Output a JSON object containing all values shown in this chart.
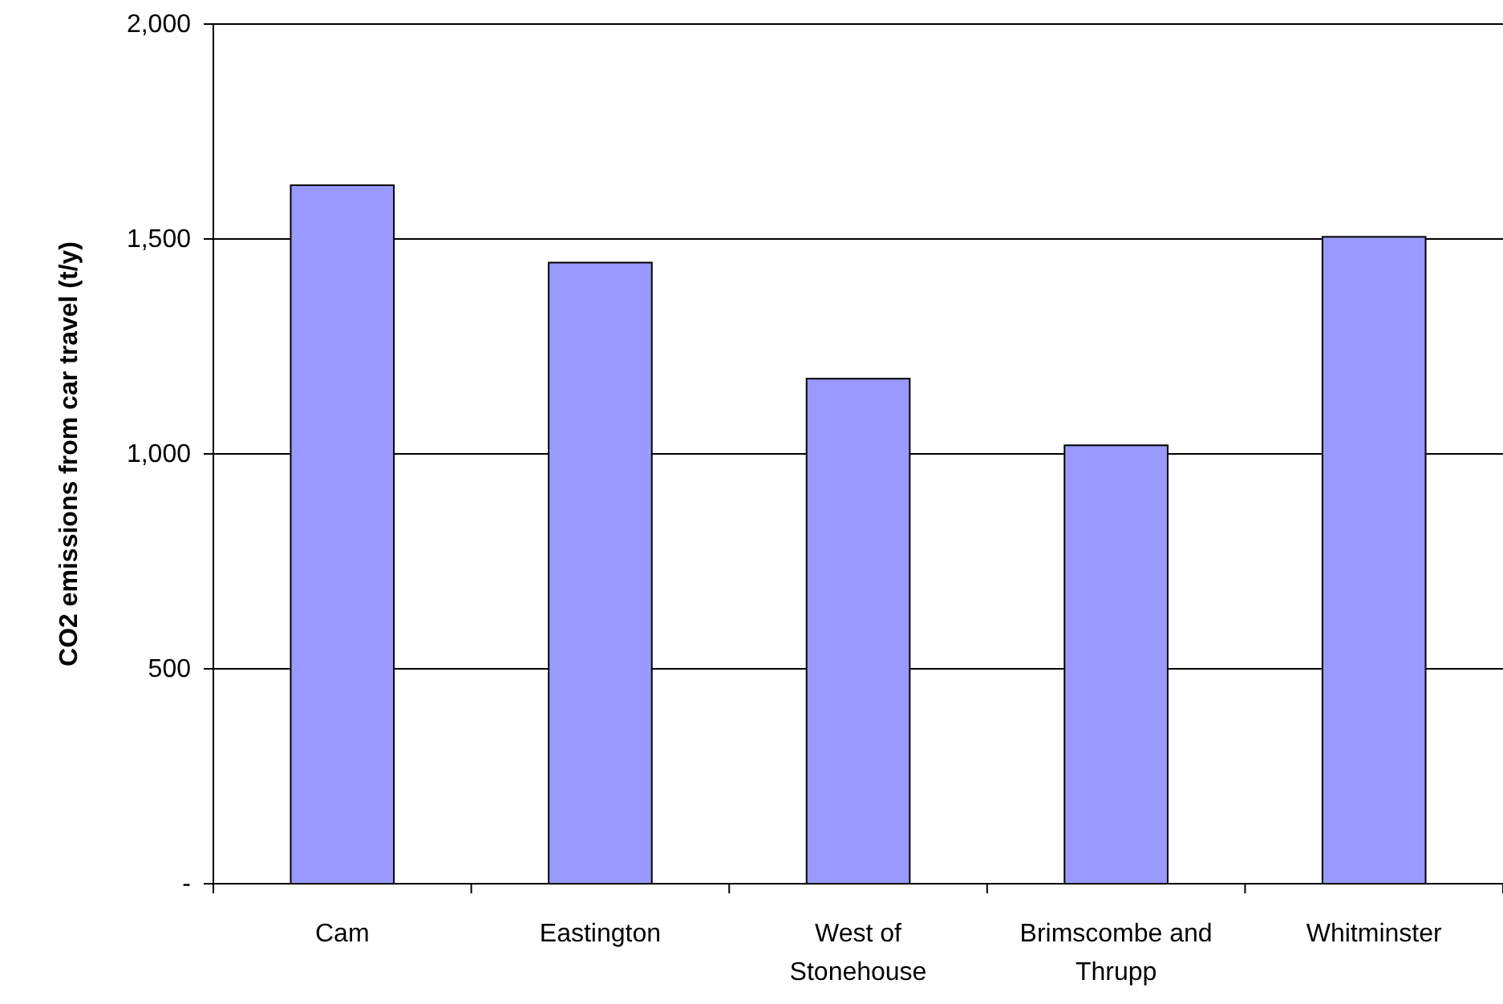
{
  "chart_data": {
    "type": "bar",
    "ylabel": "CO2 emissions from car travel (t/y)",
    "categories": [
      "Cam",
      "Eastington",
      "West of Stonehouse",
      "Brimscombe and Thrupp",
      "Whitminster"
    ],
    "values": [
      1625,
      1445,
      1175,
      1020,
      1505
    ],
    "color": "#9999ff",
    "ylim": [
      0,
      2000
    ],
    "yticks": [
      {
        "value": 0,
        "label": "-"
      },
      {
        "value": 500,
        "label": "500"
      },
      {
        "value": 1000,
        "label": "1,000"
      },
      {
        "value": 1500,
        "label": "1,500"
      },
      {
        "value": 2000,
        "label": "2,000"
      }
    ],
    "grid": "y"
  }
}
